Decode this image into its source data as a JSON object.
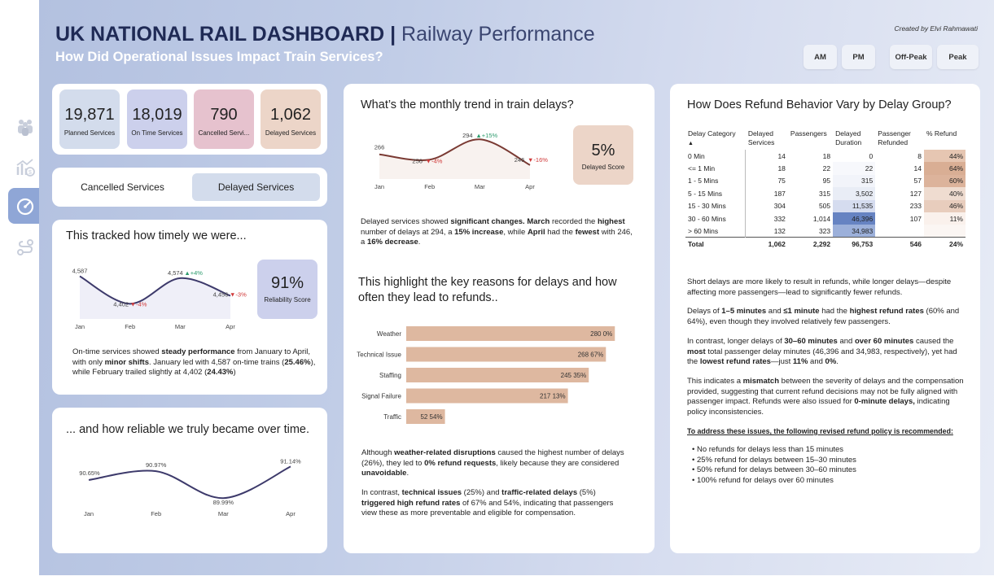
{
  "header": {
    "title_bold": "UK NATIONAL RAIL DASHBOARD |",
    "title_light": " Railway Performance",
    "subtitle": "How Did Operational Issues Impact Train Services?",
    "credit": "Created by Elvi Rahmawati"
  },
  "slicers": [
    "AM",
    "PM",
    "Off-Peak",
    "Peak"
  ],
  "sidebar": {
    "icons": [
      "people-icon",
      "chart-money-icon",
      "speedometer-icon",
      "route-icon"
    ],
    "active": "speedometer-icon"
  },
  "kpis": [
    {
      "value": "19,871",
      "label": "Planned Services",
      "color": "#d3dcec"
    },
    {
      "value": "18,019",
      "label": "On Time Services",
      "color": "#ccd0ec"
    },
    {
      "value": "790",
      "label": "Cancelled Servi...",
      "color": "#e6c2ce"
    },
    {
      "value": "1,062",
      "label": "Delayed Services",
      "color": "#ecd5c8"
    }
  ],
  "tabs": {
    "cancelled": "Cancelled Services",
    "delayed": "Delayed Services"
  },
  "ontime": {
    "title": "This tracked how timely we were...",
    "score_value": "91%",
    "score_label": "Reliability Score",
    "text": {
      "p1": "On-time services showed ",
      "b1": "steady performance",
      "p2": " from January to April, with only ",
      "b2": "minor shifts",
      "p3": ". January led with 4,587 on-time trains (",
      "b3": "25.46%",
      "p4": "), while February trailed slightly at 4,402 (",
      "b4": "24.43%",
      "p5": ")"
    }
  },
  "reliability": {
    "title": "... and how reliable we truly became over time."
  },
  "delay_trend": {
    "title": "What’s the monthly trend in train delays?",
    "score_value": "5%",
    "score_label": "Delayed Score",
    "text": {
      "p1": "Delayed services showed ",
      "b1": "significant changes.",
      "p2": " ",
      "b2": "March",
      "p3": " recorded the ",
      "b3": "highest",
      "p4": " number of delays at 294, a ",
      "b4": "15% increase",
      "p5": ", while ",
      "b5": "April",
      "p6": " had the ",
      "b6": "fewest",
      "p7": " with 246, a ",
      "b7": "16% decrease",
      "p8": "."
    }
  },
  "reasons": {
    "title": "This highlight the key reasons for delays and how often they lead to refunds..",
    "text1": {
      "p1": "Although ",
      "b1": "weather-related disruptions",
      "p2": " caused the highest number of delays (26%), they led to ",
      "b2": "0% refund requests",
      "p3": ", likely because they are considered ",
      "b3": "unavoidable",
      "p4": "."
    },
    "text2": {
      "p1": "In contrast, ",
      "b1": "technical issues",
      "p2": " (25%) and ",
      "b2": "traffic-related delays",
      "p3": " (5%) ",
      "b3": "triggered high refund rates",
      "p4": " of 67% and 54%, indicating that passengers view these as more preventable and eligible for compensation."
    }
  },
  "refund": {
    "title": "How Does Refund Behavior Vary by Delay Group?",
    "columns": [
      "Delay Category",
      "Delayed Services",
      "Passengers",
      "Delayed Duration",
      "Passenger Refunded",
      "% Refund"
    ],
    "rows": [
      [
        "0 Min",
        "14",
        "18",
        "0",
        "8",
        "44%"
      ],
      [
        "<= 1 Min",
        "18",
        "22",
        "22",
        "14",
        "64%"
      ],
      [
        "1 - 5 Mins",
        "75",
        "95",
        "315",
        "57",
        "60%"
      ],
      [
        "5 - 15 Mins",
        "187",
        "315",
        "3,502",
        "127",
        "40%"
      ],
      [
        "15 - 30 Mins",
        "304",
        "505",
        "11,535",
        "233",
        "46%"
      ],
      [
        "30 - 60 Mins",
        "332",
        "1,014",
        "46,396",
        "107",
        "11%"
      ],
      [
        "> 60 Mins",
        "132",
        "323",
        "34,983",
        "",
        ""
      ]
    ],
    "duration_shades": [
      "#ffffff",
      "#f7f8fc",
      "#f2f4fa",
      "#e9edf6",
      "#d5dcef",
      "#6683c2",
      "#9cb0da"
    ],
    "refund_shades": [
      "#e6c6b2",
      "#d9ae94",
      "#dcb39b",
      "#efdcd0",
      "#e8cdbd",
      "#faf1ec",
      "#fbf6f3"
    ],
    "total": [
      "Total",
      "1,062",
      "2,292",
      "96,753",
      "546",
      "24%"
    ],
    "insights": {
      "i1": "Short delays are more likely to result in refunds, while longer delays—despite affecting more passengers—lead to significantly fewer refunds.",
      "i2": {
        "p1": "Delays of ",
        "b1": "1–5 minutes",
        "p2": " and ",
        "b2": "≤1 minute",
        "p3": " had the ",
        "b3": "highest refund rates",
        "p4": " (60% and 64%), even though they involved relatively few passengers."
      },
      "i3": {
        "p1": "In contrast, longer delays of ",
        "b1": "30–60 minutes",
        "p2": " and ",
        "b2": "over 60 minutes",
        "p3": " caused the ",
        "b3": "most",
        "p4": " total passenger delay minutes (46,396 and 34,983, respectively), yet had the ",
        "b4": "lowest refund rates",
        "p5": "—just ",
        "b5": "11%",
        "p6": " and ",
        "b6": "0%",
        "p7": "."
      },
      "i4": {
        "p1": "This indicates a ",
        "b1": "mismatch",
        "p2": " between the severity of delays and the compensation provided, suggesting that current refund decisions may not be fully aligned with passenger impact. Refunds were also issued for ",
        "b2": "0-minute delays,",
        "p3": " indicating policy inconsistencies."
      },
      "policy_heading": "To address these issues, the following revised refund policy is recommended:",
      "policy": [
        "• No refunds for delays less than 15 minutes",
        "• 25% refund for delays between 15–30 minutes",
        "• 50% refund for delays between 30–60 minutes",
        "• 100% refund for delays over 60 minutes"
      ]
    }
  },
  "colors": {
    "navy": "#1f2a55",
    "ontime_line": "#3d3a6b",
    "delay_line": "#7a3a33",
    "bar": "#deb8a0",
    "up": "#2e9c6e",
    "down": "#d03a3a"
  },
  "chart_data": [
    {
      "type": "area",
      "name": "ontime_trend",
      "categories": [
        "Jan",
        "Feb",
        "Mar",
        "Apr"
      ],
      "values": [
        4587,
        4402,
        4574,
        4456
      ],
      "labels": [
        "4,587",
        "4,402",
        "4,574",
        "4,456"
      ],
      "changes": [
        "",
        "-4%",
        "+4%",
        "-3%"
      ],
      "ylim": [
        4300,
        4650
      ]
    },
    {
      "type": "line",
      "name": "reliability_trend",
      "categories": [
        "Jan",
        "Feb",
        "Mar",
        "Apr"
      ],
      "values": [
        90.65,
        90.97,
        89.99,
        91.14
      ],
      "labels": [
        "90.65%",
        "90.97%",
        "89.99%",
        "91.14%"
      ],
      "ylim": [
        89.7,
        91.3
      ]
    },
    {
      "type": "area",
      "name": "delay_trend",
      "categories": [
        "Jan",
        "Feb",
        "Mar",
        "Apr"
      ],
      "values": [
        266,
        256,
        294,
        246
      ],
      "labels": [
        "266",
        "256",
        "294",
        "246"
      ],
      "changes": [
        "",
        "-4%",
        "+15%",
        "-16%"
      ],
      "ylim": [
        220,
        305
      ]
    },
    {
      "type": "bar",
      "name": "delay_reasons",
      "categories": [
        "Weather",
        "Technical Issue",
        "Staffing",
        "Signal Failure",
        "Traffic"
      ],
      "values": [
        280,
        268,
        245,
        217,
        52
      ],
      "refund_pct": [
        "0%",
        "67%",
        "35%",
        "13%",
        "54%"
      ],
      "xlim": [
        0,
        295
      ]
    }
  ]
}
